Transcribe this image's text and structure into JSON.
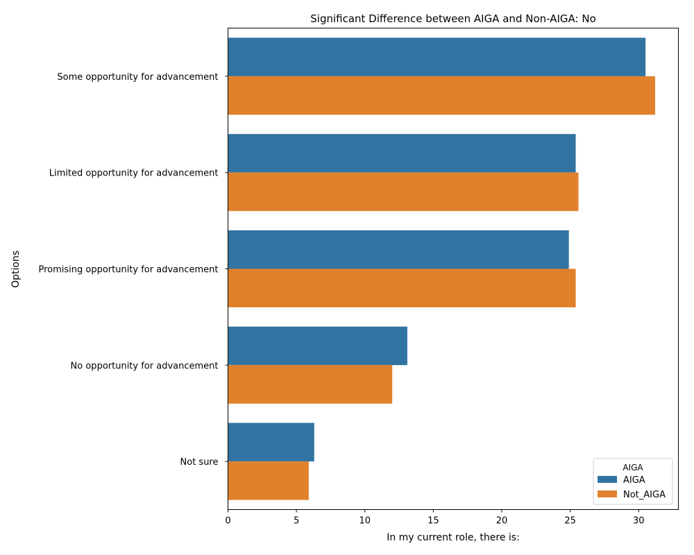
{
  "chart_data": {
    "type": "bar",
    "orientation": "horizontal",
    "title": "Significant Difference between AIGA and Non-AIGA: No",
    "xlabel": "In my current role, there is:",
    "ylabel": "Options",
    "categories": [
      "Some opportunity for advancement",
      "Limited opportunity for advancement",
      "Promising opportunity for advancement",
      "No opportunity for advancement",
      "Not sure"
    ],
    "series": [
      {
        "name": "AIGA",
        "color": "#3274a1",
        "values": [
          30.5,
          25.4,
          24.9,
          13.1,
          6.3
        ]
      },
      {
        "name": "Not_AIGA",
        "color": "#e1812c",
        "values": [
          31.2,
          25.6,
          25.4,
          12.0,
          5.9
        ]
      }
    ],
    "xlim": [
      0,
      32.9
    ],
    "xticks": [
      0,
      5,
      10,
      15,
      20,
      25,
      30
    ],
    "legend": {
      "title": "AIGA",
      "placement": "lower-right"
    },
    "grid": false
  }
}
